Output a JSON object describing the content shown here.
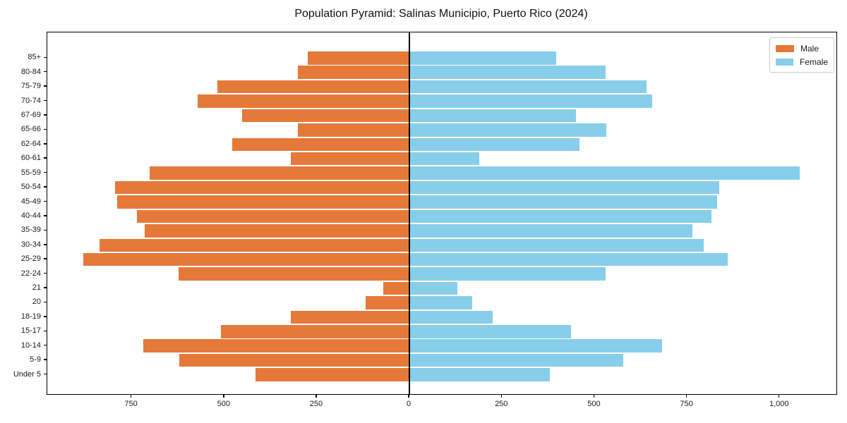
{
  "chart_data": {
    "type": "bar",
    "subtype": "population-pyramid",
    "orientation": "horizontal",
    "title": "Population Pyramid: Salinas Municipio, Puerto Rico (2024)",
    "categories": [
      "85+",
      "80-84",
      "75-79",
      "70-74",
      "67-69",
      "65-66",
      "62-64",
      "60-61",
      "55-59",
      "50-54",
      "45-49",
      "40-44",
      "35-39",
      "30-34",
      "25-29",
      "22-24",
      "21",
      "20",
      "18-19",
      "15-17",
      "10-14",
      "5-9",
      "Under 5"
    ],
    "series": [
      {
        "name": "Male",
        "side": "left",
        "color": "#e5793a",
        "values": [
          274,
          302,
          519,
          572,
          451,
          302,
          478,
          321,
          702,
          795,
          789,
          736,
          715,
          837,
          881,
          624,
          71,
          119,
          321,
          510,
          719,
          622,
          415
        ]
      },
      {
        "name": "Female",
        "side": "right",
        "color": "#87ceeb",
        "values": [
          397,
          530,
          641,
          656,
          449,
          532,
          460,
          188,
          1053,
          837,
          830,
          816,
          765,
          795,
          859,
          530,
          129,
          170,
          224,
          436,
          683,
          578,
          380
        ]
      }
    ],
    "x_axis": {
      "range": [
        -978,
        1153
      ],
      "ticks": [
        {
          "value": -750,
          "label": "750"
        },
        {
          "value": -500,
          "label": "500"
        },
        {
          "value": -250,
          "label": "250"
        },
        {
          "value": 0,
          "label": "0"
        },
        {
          "value": 250,
          "label": "250"
        },
        {
          "value": 500,
          "label": "500"
        },
        {
          "value": 750,
          "label": "750"
        },
        {
          "value": 1000,
          "label": "1,000"
        }
      ]
    },
    "y_axis": {
      "label_order": "oldest-top"
    },
    "legend": {
      "position": "upper-right",
      "entries": [
        "Male",
        "Female"
      ]
    },
    "grid": false,
    "center_line": true,
    "background_color": "#ffffff",
    "axis_color": "#000000"
  }
}
